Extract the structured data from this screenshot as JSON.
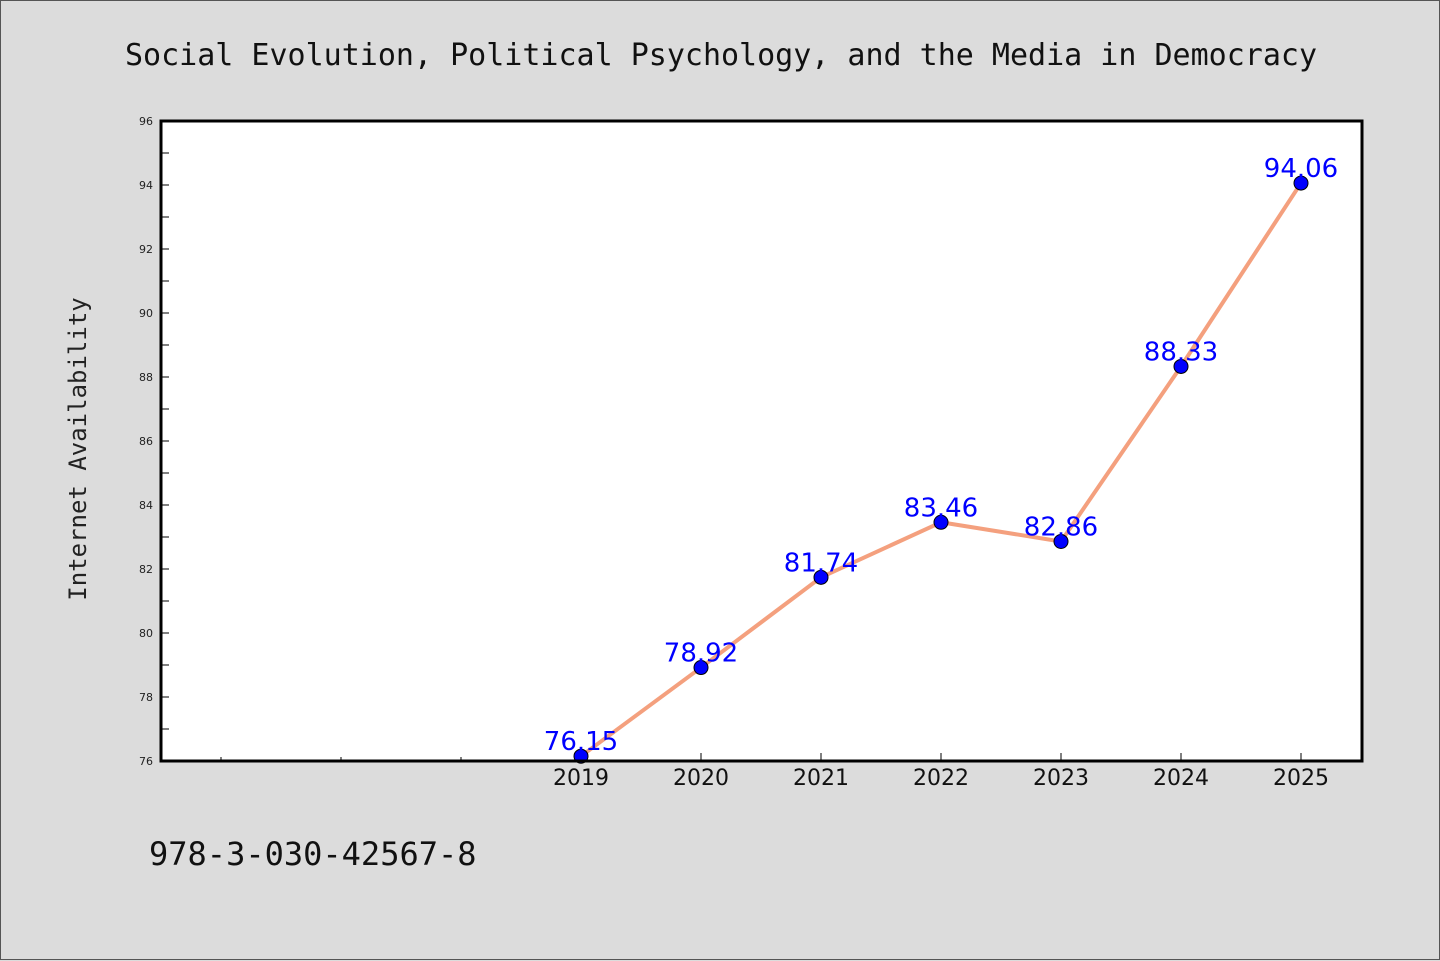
{
  "chart_data": {
    "type": "line",
    "title": "Social Evolution, Political Psychology, and the Media in Democracy",
    "xlabel": "",
    "ylabel": "Internet Availability",
    "categories": [
      "2019",
      "2020",
      "2021",
      "2022",
      "2023",
      "2024",
      "2025"
    ],
    "series": [
      {
        "values": [
          76.15,
          78.92,
          81.74,
          83.46,
          82.86,
          88.33,
          94.06
        ]
      }
    ],
    "data_labels": [
      "76.15",
      "78.92",
      "81.74",
      "83.46",
      "82.86",
      "88.33",
      "94.06"
    ],
    "ylim": [
      76,
      96
    ],
    "yticks": [
      "76",
      "78",
      "80",
      "82",
      "84",
      "86",
      "88",
      "90",
      "92",
      "94",
      "96"
    ],
    "grid": false,
    "legend": "none",
    "line_color": "#f4a07e",
    "marker_color": "#0000ff",
    "label_color": "#0000ff"
  },
  "footer": {
    "isbn": "978-3-030-42567-8"
  }
}
